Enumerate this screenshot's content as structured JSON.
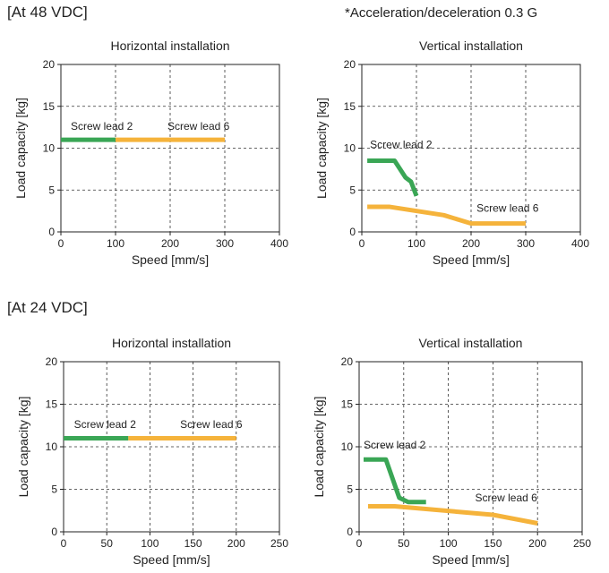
{
  "section_48": "[At 48 VDC]",
  "section_24": "[At 24 VDC]",
  "note": "*Acceleration/deceleration 0.3 G",
  "colors": {
    "lead2": "#3aa655",
    "lead6": "#f5b33b",
    "grid": "#333333"
  },
  "chart_data": [
    {
      "type": "line",
      "title": "Horizontal installation",
      "xlabel": "Speed [mm/s]",
      "ylabel": "Load capacity [kg]",
      "xlim": [
        0,
        400
      ],
      "ylim": [
        0,
        20
      ],
      "xticks": [
        0,
        100,
        200,
        300,
        400
      ],
      "yticks": [
        0,
        5,
        10,
        15,
        20
      ],
      "grid": true,
      "series": [
        {
          "name": "Screw lead 2",
          "color": "lead2",
          "x": [
            0,
            100
          ],
          "y": [
            11,
            11
          ]
        },
        {
          "name": "Screw lead 6",
          "color": "lead6",
          "x": [
            100,
            300
          ],
          "y": [
            11,
            11
          ]
        }
      ],
      "annotations": [
        {
          "text": "Screw lead 2",
          "x": 18,
          "y": 12.2
        },
        {
          "text": "Screw lead 6",
          "x": 195,
          "y": 12.2
        }
      ]
    },
    {
      "type": "line",
      "title": "Vertical installation",
      "xlabel": "Speed [mm/s]",
      "ylabel": "Load capacity [kg]",
      "xlim": [
        0,
        400
      ],
      "ylim": [
        0,
        20
      ],
      "xticks": [
        0,
        100,
        200,
        300,
        400
      ],
      "yticks": [
        0,
        5,
        10,
        15,
        20
      ],
      "grid": true,
      "series": [
        {
          "name": "Screw lead 2",
          "color": "lead2",
          "x": [
            10,
            60,
            80,
            90,
            100
          ],
          "y": [
            8.5,
            8.5,
            6.5,
            6,
            4.3
          ]
        },
        {
          "name": "Screw lead 6",
          "color": "lead6",
          "x": [
            10,
            50,
            150,
            200,
            300
          ],
          "y": [
            3,
            3,
            2,
            1,
            1
          ]
        }
      ],
      "annotations": [
        {
          "text": "Screw lead 2",
          "x": 15,
          "y": 10
        },
        {
          "text": "Screw lead 6",
          "x": 210,
          "y": 2.4
        }
      ]
    },
    {
      "type": "line",
      "title": "Horizontal installation",
      "xlabel": "Speed [mm/s]",
      "ylabel": "Load capacity [kg]",
      "xlim": [
        0,
        250
      ],
      "ylim": [
        0,
        20
      ],
      "xticks": [
        0,
        50,
        100,
        150,
        200,
        250
      ],
      "yticks": [
        0,
        5,
        10,
        15,
        20
      ],
      "grid": true,
      "series": [
        {
          "name": "Screw lead 2",
          "color": "lead2",
          "x": [
            0,
            75
          ],
          "y": [
            11,
            11
          ]
        },
        {
          "name": "Screw lead 6",
          "color": "lead6",
          "x": [
            75,
            200
          ],
          "y": [
            11,
            11
          ]
        }
      ],
      "annotations": [
        {
          "text": "Screw lead 2",
          "x": 12,
          "y": 12.2
        },
        {
          "text": "Screw lead 6",
          "x": 135,
          "y": 12.2
        }
      ]
    },
    {
      "type": "line",
      "title": "Vertical installation",
      "xlabel": "Speed [mm/s]",
      "ylabel": "Load capacity [kg]",
      "xlim": [
        0,
        250
      ],
      "ylim": [
        0,
        20
      ],
      "xticks": [
        0,
        50,
        100,
        150,
        200,
        250
      ],
      "yticks": [
        0,
        5,
        10,
        15,
        20
      ],
      "grid": true,
      "series": [
        {
          "name": "Screw lead 2",
          "color": "lead2",
          "x": [
            5,
            30,
            45,
            55,
            75
          ],
          "y": [
            8.5,
            8.5,
            4,
            3.5,
            3.5
          ]
        },
        {
          "name": "Screw lead 6",
          "color": "lead6",
          "x": [
            10,
            40,
            150,
            200
          ],
          "y": [
            3,
            3,
            2,
            1
          ]
        }
      ],
      "annotations": [
        {
          "text": "Screw lead 2",
          "x": 5,
          "y": 9.8
        },
        {
          "text": "Screw lead 6",
          "x": 130,
          "y": 3.6
        }
      ]
    }
  ]
}
